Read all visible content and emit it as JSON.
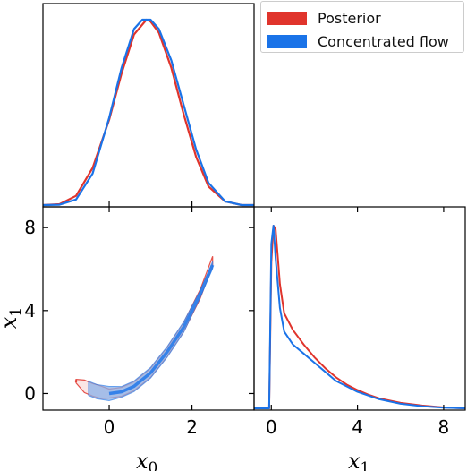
{
  "colors": {
    "posterior": "#e0342c",
    "flow": "#1a73e8"
  },
  "legend": {
    "items": [
      {
        "label": "Posterior",
        "color": "#e0342c"
      },
      {
        "label": "Concentrated flow",
        "color": "#1a73e8"
      }
    ],
    "position": "top-right"
  },
  "chart_data": [
    {
      "type": "line",
      "panel": "marginal-x0",
      "xlim": [
        -1.6,
        3.5
      ],
      "series": [
        {
          "name": "Posterior",
          "x": [
            -1.6,
            -1.2,
            -0.8,
            -0.4,
            0.0,
            0.3,
            0.6,
            0.9,
            1.0,
            1.2,
            1.5,
            1.8,
            2.1,
            2.4,
            2.8,
            3.2,
            3.5
          ],
          "y": [
            0.0,
            0.005,
            0.05,
            0.2,
            0.46,
            0.71,
            0.92,
            1.0,
            0.99,
            0.93,
            0.74,
            0.49,
            0.26,
            0.1,
            0.02,
            0.0,
            0.0
          ]
        },
        {
          "name": "Concentrated flow",
          "x": [
            -1.6,
            -1.2,
            -0.8,
            -0.4,
            0.0,
            0.3,
            0.6,
            0.8,
            1.0,
            1.2,
            1.5,
            1.8,
            2.1,
            2.4,
            2.8,
            3.2,
            3.5
          ],
          "y": [
            0.0,
            0.002,
            0.03,
            0.17,
            0.47,
            0.74,
            0.95,
            1.0,
            1.0,
            0.95,
            0.78,
            0.54,
            0.3,
            0.12,
            0.02,
            0.0,
            0.0
          ]
        }
      ]
    },
    {
      "type": "line",
      "panel": "marginal-x1",
      "xlim": [
        -0.8,
        9.0
      ],
      "xticks": [
        0,
        4,
        8
      ],
      "xlabel": "x1",
      "series": [
        {
          "name": "Posterior",
          "x": [
            -0.8,
            -0.1,
            0.0,
            0.1,
            0.2,
            0.4,
            0.6,
            1.0,
            1.5,
            2.0,
            2.5,
            3.0,
            3.5,
            4.0,
            4.5,
            5.0,
            6.0,
            7.0,
            8.0,
            9.0
          ],
          "y": [
            0.0,
            0.0,
            0.8,
            1.0,
            0.98,
            0.68,
            0.52,
            0.43,
            0.35,
            0.28,
            0.22,
            0.17,
            0.13,
            0.1,
            0.075,
            0.055,
            0.03,
            0.015,
            0.005,
            0.0
          ]
        },
        {
          "name": "Concentrated flow",
          "x": [
            -0.8,
            -0.1,
            0.0,
            0.1,
            0.2,
            0.4,
            0.6,
            1.0,
            1.5,
            2.0,
            2.5,
            3.0,
            3.5,
            4.0,
            4.5,
            5.0,
            6.0,
            7.0,
            8.0,
            9.0
          ],
          "y": [
            0.0,
            0.0,
            0.9,
            1.0,
            0.82,
            0.55,
            0.42,
            0.35,
            0.3,
            0.25,
            0.2,
            0.15,
            0.12,
            0.09,
            0.07,
            0.05,
            0.025,
            0.012,
            0.004,
            0.0
          ]
        }
      ]
    },
    {
      "type": "scatter",
      "panel": "joint-x0-x1",
      "xlim": [
        -1.6,
        3.5
      ],
      "ylim": [
        -0.8,
        9.0
      ],
      "xticks": [
        0,
        2
      ],
      "yticks": [
        0,
        4,
        8
      ],
      "xlabel": "x0",
      "ylabel": "x1",
      "series": [
        {
          "name": "Posterior",
          "style": "outer contour",
          "x": [
            -0.8,
            -0.6,
            -0.4,
            -0.2,
            0.0,
            0.3,
            0.6,
            1.0,
            1.4,
            1.8,
            2.2,
            2.5
          ],
          "y": [
            0.6,
            0.35,
            0.18,
            0.06,
            0.0,
            0.08,
            0.35,
            1.0,
            2.0,
            3.2,
            4.8,
            6.4
          ]
        },
        {
          "name": "Concentrated flow",
          "style": "filled band",
          "x": [
            -0.5,
            -0.3,
            0.0,
            0.3,
            0.6,
            1.0,
            1.4,
            1.8,
            2.2,
            2.5
          ],
          "y": [
            0.25,
            0.09,
            0.0,
            0.08,
            0.35,
            1.0,
            2.0,
            3.2,
            4.8,
            6.2
          ]
        }
      ]
    }
  ]
}
